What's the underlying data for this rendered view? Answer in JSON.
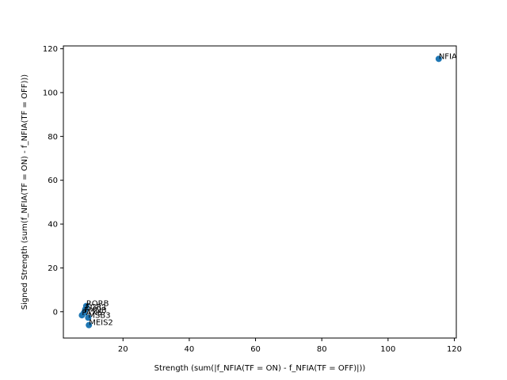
{
  "chart_data": {
    "type": "scatter",
    "title": "",
    "xlabel": "Strength (sum(|f_NFIA(TF = ON) - f_NFIA(TF = OFF)|))",
    "ylabel": "Signed Strength (sum(f_NFIA(TF = ON) - f_NFIA(TF = OFF)))",
    "xlim": [
      2.0,
      120.6
    ],
    "ylim": [
      -12.0,
      121.3
    ],
    "xticks": [
      20,
      40,
      60,
      80,
      100,
      120
    ],
    "yticks": [
      0,
      20,
      40,
      60,
      80,
      100,
      120
    ],
    "grid": false,
    "marker_color": "#1f77b4",
    "points": [
      {
        "label": "NFIA",
        "x": 115.3,
        "y": 115.4
      },
      {
        "label": "RORB",
        "x": 8.9,
        "y": 2.6
      },
      {
        "label": "EGR1",
        "x": 8.6,
        "y": 1.0
      },
      {
        "label": "FMNB",
        "x": 8.2,
        "y": -0.5
      },
      {
        "label": "PAX6",
        "x": 7.6,
        "y": -1.6
      },
      {
        "label": "MSB3",
        "x": 9.5,
        "y": -2.7
      },
      {
        "label": "MEIS2",
        "x": 9.7,
        "y": -6.1
      }
    ]
  }
}
